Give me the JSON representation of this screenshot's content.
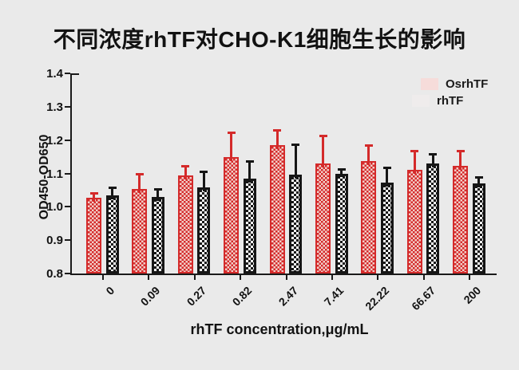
{
  "chart_data": {
    "type": "bar",
    "title": "不同浓度rhTF对CHO-K1细胞生长的影响",
    "xlabel": "rhTF concentration,μg/mL",
    "ylabel": "OD450-OD650",
    "categories": [
      "0",
      "0.09",
      "0.27",
      "0.82",
      "2.47",
      "7.41",
      "22.22",
      "66.67",
      "200"
    ],
    "series": [
      {
        "name": "OsrhTF",
        "color": "#d42a2a",
        "pattern": "checker-red-white",
        "values": [
          1.027,
          1.053,
          1.094,
          1.148,
          1.185,
          1.13,
          1.137,
          1.11,
          1.123
        ],
        "errors": [
          0.014,
          0.046,
          0.029,
          0.074,
          0.045,
          0.083,
          0.047,
          0.058,
          0.045
        ]
      },
      {
        "name": "rhTF",
        "color": "#161616",
        "pattern": "checker-black-white",
        "values": [
          1.034,
          1.029,
          1.058,
          1.084,
          1.097,
          1.1,
          1.073,
          1.13,
          1.071
        ],
        "errors": [
          0.024,
          0.024,
          0.048,
          0.053,
          0.09,
          0.013,
          0.044,
          0.028,
          0.019
        ]
      }
    ],
    "ylim": [
      0.8,
      1.4
    ],
    "yticks": [
      "0.8",
      "0.9",
      "1.0",
      "1.1",
      "1.2",
      "1.3",
      "1.4"
    ],
    "grid": false,
    "error_bars": "upper-only",
    "legend_position": "top-right",
    "legend": [
      {
        "label": "OsrhTF",
        "swatch_color": "#f6dcda"
      },
      {
        "label": "rhTF",
        "swatch_color": "#efecec"
      }
    ],
    "axis_color": "#1a1a1a",
    "background_color": "#ececec"
  }
}
